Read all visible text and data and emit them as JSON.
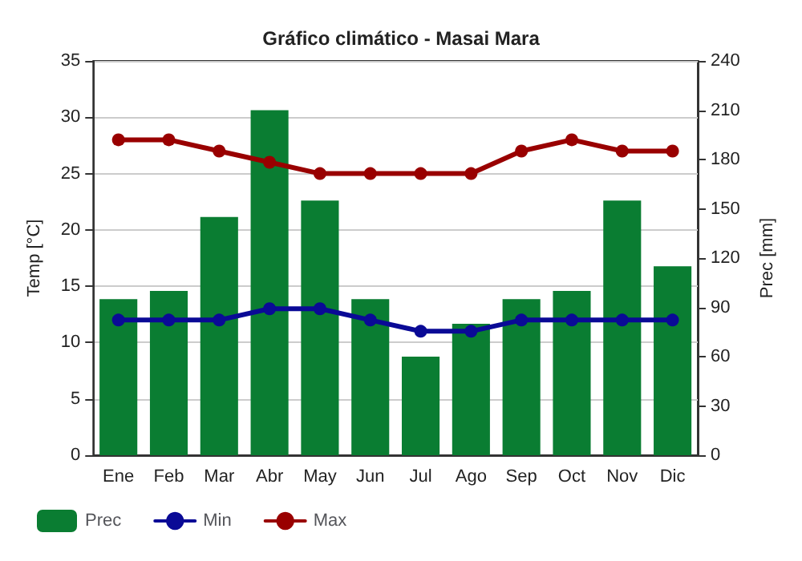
{
  "chart_data": {
    "type": "bar",
    "title": "Gráfico climático - Masai Mara",
    "ylabel": "Temp [°C]",
    "y2label": "Prec [mm]",
    "categories": [
      "Ene",
      "Feb",
      "Mar",
      "Abr",
      "May",
      "Jun",
      "Jul",
      "Ago",
      "Sep",
      "Oct",
      "Nov",
      "Dic"
    ],
    "series": [
      {
        "name": "Prec",
        "axis": "y2",
        "color": "#0a7d32",
        "values": [
          95,
          100,
          145,
          210,
          155,
          95,
          60,
          80,
          95,
          100,
          155,
          115
        ]
      },
      {
        "name": "Min",
        "type": "line",
        "color": "#0a0a96",
        "values": [
          12,
          12,
          12,
          13,
          13,
          12,
          11,
          11,
          12,
          12,
          12,
          12
        ]
      },
      {
        "name": "Max",
        "type": "line",
        "color": "#990000",
        "values": [
          28,
          28,
          27,
          26,
          25,
          25,
          25,
          25,
          27,
          28,
          27,
          27
        ]
      }
    ],
    "ylim": [
      0,
      35
    ],
    "yticks": [
      0,
      5,
      10,
      15,
      20,
      25,
      30,
      35
    ],
    "y2lim": [
      0,
      240
    ],
    "y2ticks": [
      0,
      30,
      60,
      90,
      120,
      150,
      180,
      210,
      240
    ],
    "grid": "y",
    "legend": "bottom",
    "marker": "circle",
    "line_style": "solid"
  }
}
